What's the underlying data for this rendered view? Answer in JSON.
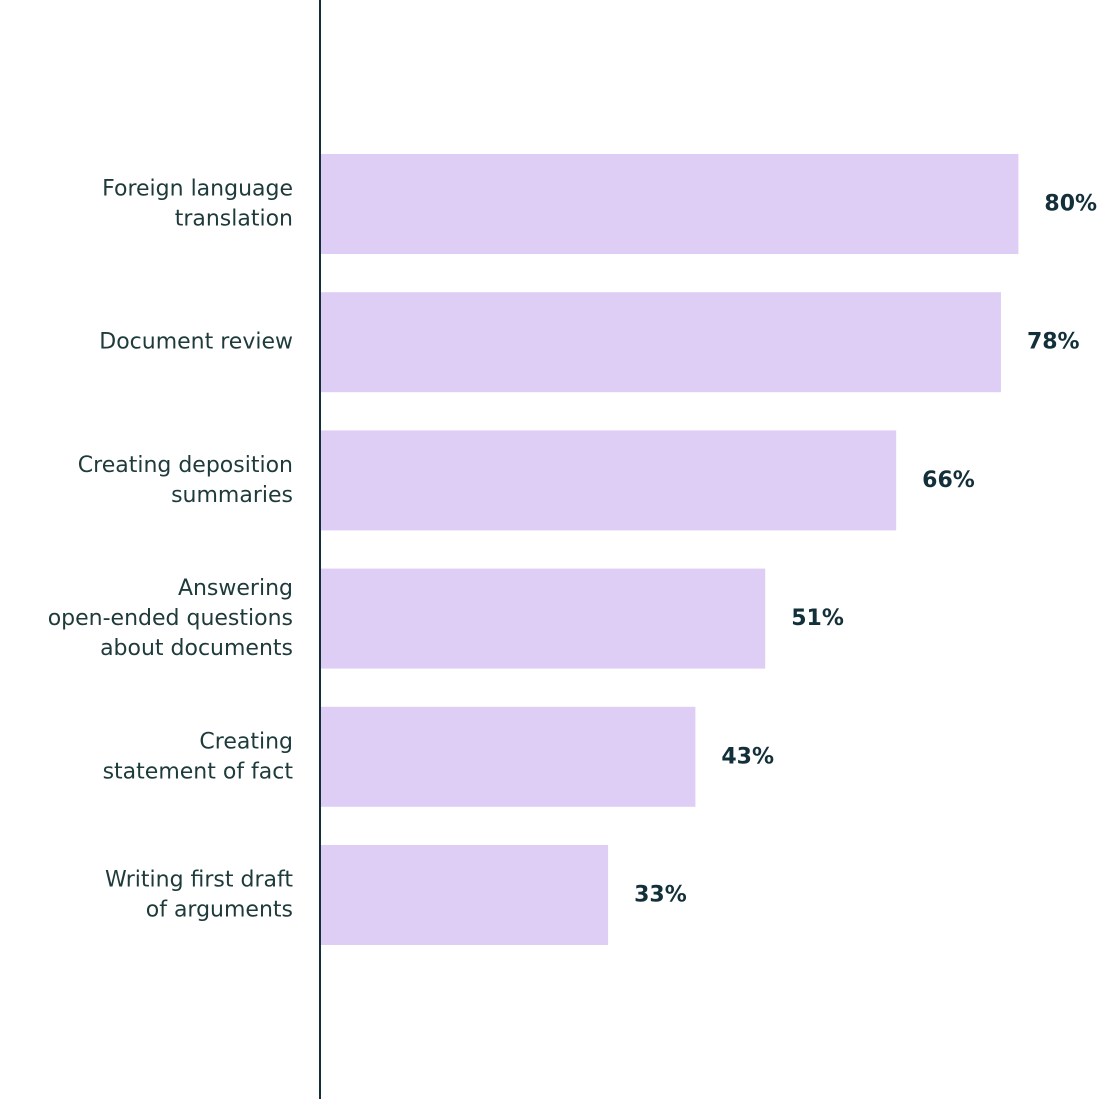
{
  "chart_data": {
    "type": "bar",
    "orientation": "horizontal",
    "categories": [
      [
        "Foreign language",
        "translation"
      ],
      [
        "Document review"
      ],
      [
        "Creating deposition",
        "summaries"
      ],
      [
        "Answering",
        "open-ended questions",
        "about documents"
      ],
      [
        "Creating",
        "statement of fact"
      ],
      [
        "Writing first draft",
        "of arguments"
      ]
    ],
    "values": [
      80,
      78,
      66,
      51,
      43,
      33
    ],
    "value_labels": [
      "80%",
      "78%",
      "66%",
      "51%",
      "43%",
      "33%"
    ],
    "unit": "%",
    "xlim": [
      0,
      100
    ],
    "grid": false,
    "legend": "none",
    "colors": {
      "bar": "#decdf5",
      "axis": "#13303a",
      "category_text": "#1e3a3a",
      "value_text": "#13303a"
    }
  }
}
